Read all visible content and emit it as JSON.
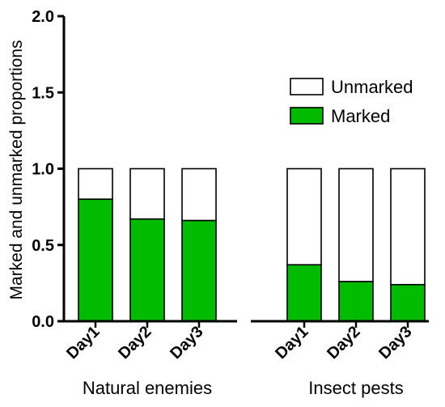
{
  "chart_data": {
    "type": "bar",
    "stacked": true,
    "ylabel": "Marked and unmarked proportions",
    "ylim": [
      0,
      2.0
    ],
    "yticks": [
      "0.0",
      "0.5",
      "1.0",
      "1.5",
      "2.0"
    ],
    "groups": [
      {
        "label": "Natural enemies",
        "categories": [
          "Day1",
          "Day2",
          "Day3"
        ],
        "marked": [
          0.8,
          0.67,
          0.66
        ],
        "unmarked": [
          0.2,
          0.33,
          0.34
        ]
      },
      {
        "label": "Insect pests",
        "categories": [
          "Day1",
          "Day2",
          "Day3"
        ],
        "marked": [
          0.37,
          0.26,
          0.24
        ],
        "unmarked": [
          0.63,
          0.74,
          0.76
        ]
      }
    ],
    "series": [
      {
        "name": "Unmarked",
        "color": "#ffffff"
      },
      {
        "name": "Marked",
        "color": "#00bb00"
      }
    ],
    "legend_position": "top-right",
    "grid": false
  }
}
